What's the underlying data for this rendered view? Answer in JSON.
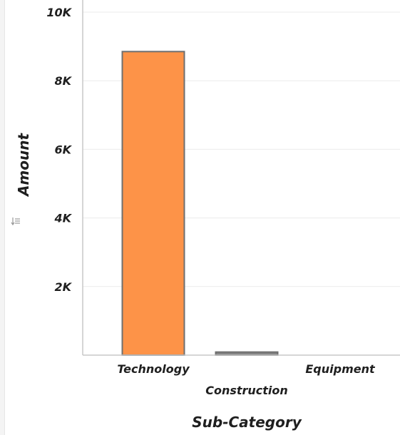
{
  "chart_data": {
    "type": "bar",
    "categories": [
      "Technology",
      "Construction",
      "Equipment"
    ],
    "values": [
      8850,
      90,
      0
    ],
    "bar_colors": [
      "#fd9348",
      "#848484",
      "#848484"
    ],
    "bar_stroke": "#6f6f6f",
    "xlabel": "Sub-Category",
    "ylabel": "Amount",
    "ylim": [
      0,
      10200
    ],
    "yticks": [
      2000,
      4000,
      6000,
      8000,
      10000
    ],
    "ytick_labels": [
      "2K",
      "4K",
      "6K",
      "8K",
      "10K"
    ],
    "grid": true,
    "legend": "none"
  },
  "ui": {
    "y_axis_toggle_icon": "sort-axis-icon"
  }
}
